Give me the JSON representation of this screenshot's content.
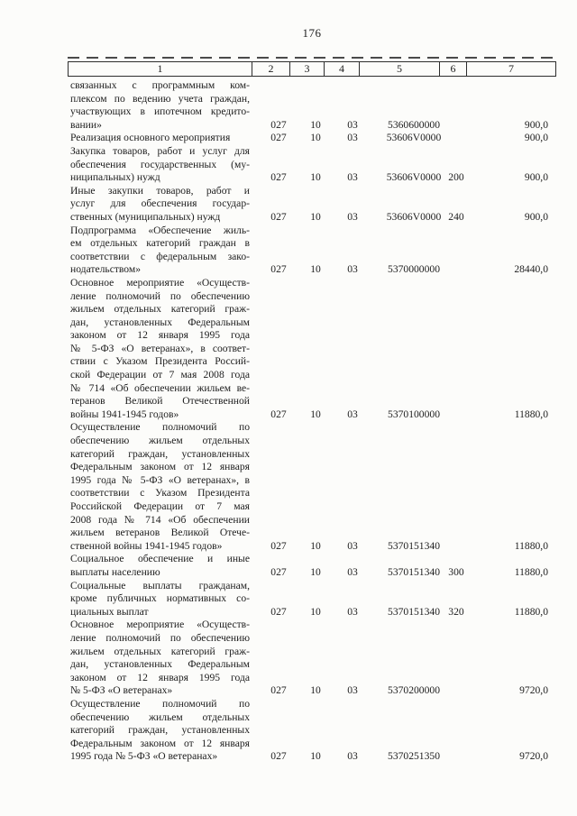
{
  "page": {
    "number": "176"
  },
  "table": {
    "header": [
      "1",
      "2",
      "3",
      "4",
      "5",
      "6",
      "7"
    ],
    "rows": [
      {
        "lines": [
          "связанных с программным ком-",
          "плексом по ведению учета граждан,",
          "участвующих в ипотечном кредито-",
          "вании»"
        ],
        "values": [
          "027",
          "10",
          "03",
          "5360600000",
          "",
          "900,0"
        ]
      },
      {
        "lines": [
          "Реализация основного мероприятия"
        ],
        "values": [
          "027",
          "10",
          "03",
          "53606V0000",
          "",
          "900,0"
        ]
      },
      {
        "lines": [
          "Закупка товаров, работ и услуг для",
          "обеспечения государственных (му-",
          "ниципальных) нужд"
        ],
        "values": [
          "027",
          "10",
          "03",
          "53606V0000",
          "200",
          "900,0"
        ]
      },
      {
        "lines": [
          "Иные закупки товаров, работ и",
          "услуг для обеспечения государ-",
          "ственных (муниципальных) нужд"
        ],
        "values": [
          "027",
          "10",
          "03",
          "53606V0000",
          "240",
          "900,0"
        ]
      },
      {
        "lines": [
          "Подпрограмма «Обеспечение жиль-",
          "ем отдельных категорий граждан в",
          "соответствии с федеральным зако-",
          "нодательством»"
        ],
        "values": [
          "027",
          "10",
          "03",
          "5370000000",
          "",
          "28440,0"
        ]
      },
      {
        "lines": [
          "Основное мероприятие «Осуществ-",
          "ление полномочий по обеспечению",
          "жильем отдельных категорий граж-",
          "дан, установленных Федеральным",
          "законом от 12 января 1995 года",
          "№ 5-ФЗ «О ветеранах», в соответ-",
          "ствии с Указом Президента Россий-",
          "ской Федерации от 7 мая 2008 года",
          "№ 714 «Об обеспечении жильем ве-",
          "теранов Великой Отечественной",
          "войны 1941-1945 годов»"
        ],
        "values": [
          "027",
          "10",
          "03",
          "5370100000",
          "",
          "11880,0"
        ]
      },
      {
        "lines": [
          "Осуществление полномочий по",
          "обеспечению жильем отдельных",
          "категорий граждан, установленных",
          "Федеральным законом от 12 января",
          "1995 года № 5-ФЗ «О ветеранах», в",
          "соответствии с Указом Президента",
          "Российской Федерации от 7 мая",
          "2008 года № 714 «Об обеспечении",
          "жильем ветеранов Великой Отече-",
          "ственной войны 1941-1945 годов»"
        ],
        "values": [
          "027",
          "10",
          "03",
          "5370151340",
          "",
          "11880,0"
        ]
      },
      {
        "lines": [
          "Социальное обеспечение и иные",
          "выплаты населению"
        ],
        "values": [
          "027",
          "10",
          "03",
          "5370151340",
          "300",
          "11880,0"
        ]
      },
      {
        "lines": [
          "Социальные выплаты гражданам,",
          "кроме публичных нормативных со-",
          "циальных выплат"
        ],
        "values": [
          "027",
          "10",
          "03",
          "5370151340",
          "320",
          "11880,0"
        ]
      },
      {
        "lines": [
          "Основное мероприятие «Осуществ-",
          "ление полномочий по обеспечению",
          "жильем отдельных категорий граж-",
          "дан, установленных Федеральным",
          "законом от 12 января 1995 года",
          "№ 5-ФЗ «О ветеранах»"
        ],
        "values": [
          "027",
          "10",
          "03",
          "5370200000",
          "",
          "9720,0"
        ]
      },
      {
        "lines": [
          "Осуществление полномочий по",
          "обеспечению жильем отдельных",
          "категорий граждан, установленных",
          "Федеральным законом от 12 января",
          "1995 года № 5-ФЗ «О ветеранах»"
        ],
        "values": [
          "027",
          "10",
          "03",
          "5370251350",
          "",
          "9720,0"
        ]
      }
    ]
  }
}
